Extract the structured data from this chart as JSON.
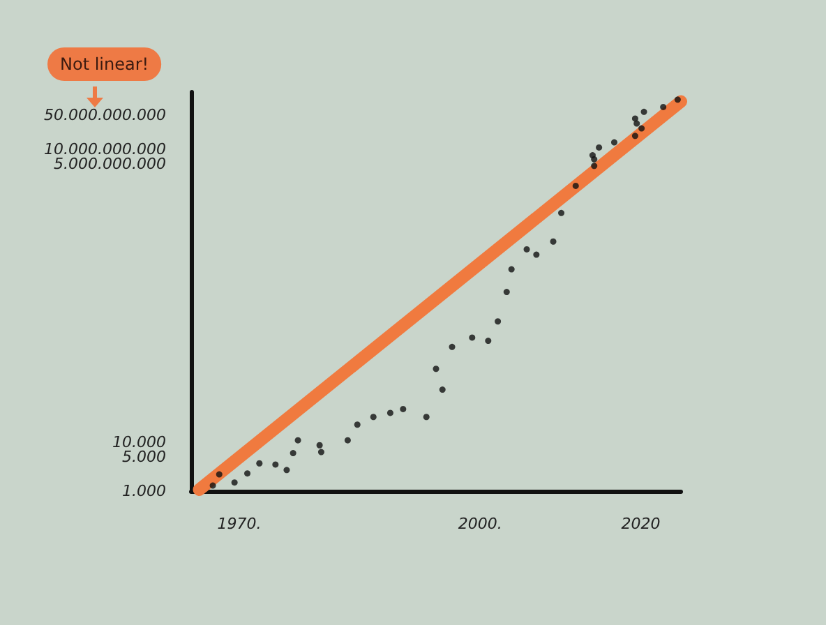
{
  "chart_data": {
    "type": "scatter",
    "log": "y",
    "grid": false,
    "marker": "circle",
    "annotations": [
      "Not linear!"
    ],
    "xlim": [
      1964,
      2025
    ],
    "xticks": [
      {
        "value": 1970,
        "label": "1970."
      },
      {
        "value": 2000,
        "label": "2000."
      },
      2020
    ],
    "ylim": [
      1000,
      150000000000
    ],
    "yticks": [
      {
        "value": 1000,
        "label": "1.000"
      },
      {
        "value": 5000,
        "label": "5.000"
      },
      {
        "value": 10000,
        "label": "10.000"
      },
      {
        "value": 5000000000,
        "label": "5.000.000.000"
      },
      {
        "value": 10000000000,
        "label": "10.000.000.000"
      },
      {
        "value": 50000000000,
        "label": "50.000.000.000"
      }
    ],
    "series": [
      {
        "color": "#111111",
        "x": [
          1966.7,
          1967.5,
          1969.4,
          1971.0,
          1972.5,
          1974.5,
          1975.9,
          1976.7,
          1977.3,
          1980.0,
          1980.2,
          1983.5,
          1984.7,
          1986.7,
          1988.8,
          1990.4,
          1993.3,
          1994.5,
          1995.3,
          1996.5,
          1999.0,
          2001.0,
          2002.2,
          2003.3,
          2003.9,
          2005.8,
          2007.0,
          2009.1,
          2010.1,
          2011.9,
          2014.2,
          2014.2,
          2014.0,
          2014.8,
          2016.7,
          2019.3,
          2020.1,
          2019.5,
          2019.3,
          2020.4,
          2022.8,
          2024.6
        ],
        "values": [
          1300,
          2200,
          1500,
          2300,
          3700,
          3500,
          2700,
          6000,
          11000,
          8700,
          6300,
          11000,
          23000,
          33000,
          40000,
          48000,
          33000,
          320000,
          120000,
          900000,
          1400000,
          1200000,
          3000000,
          12000000,
          35000000,
          90000000,
          70000000,
          130000000,
          500000000,
          1800000000,
          4600000000,
          6300000000,
          7600000000,
          11000000000,
          14000000000,
          19000000000,
          27000000000,
          34000000000,
          43000000000,
          59000000000,
          74000000000,
          105000000000
        ]
      },
      {
        "type": "line",
        "color": "#f07a3f",
        "marker": "none",
        "line_style": "solid",
        "x": [
          1965,
          2025
        ],
        "values": [
          1070,
          96000000000
        ]
      }
    ]
  }
}
